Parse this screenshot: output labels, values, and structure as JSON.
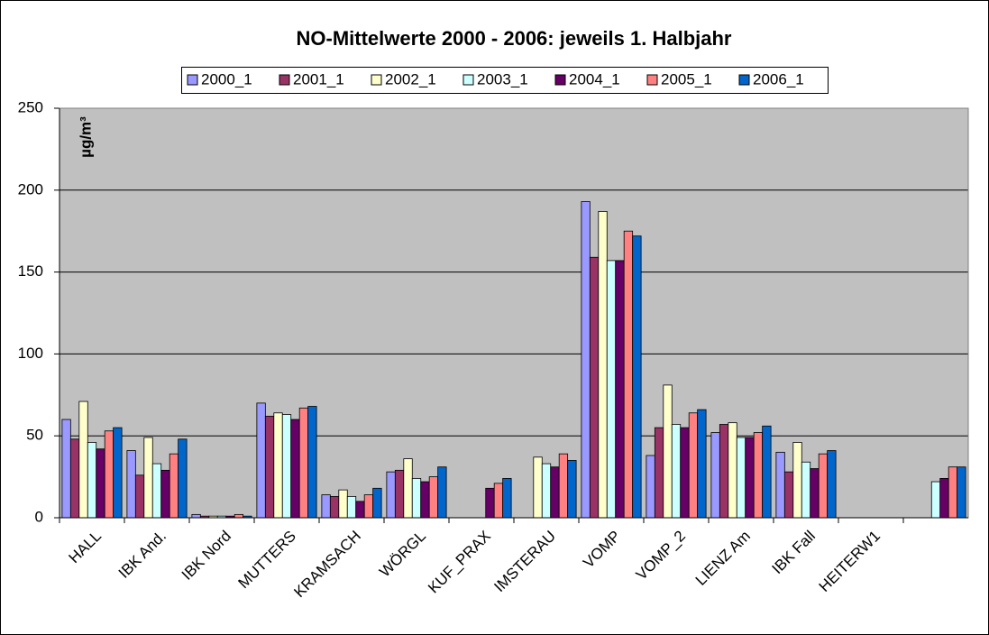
{
  "chart_data": {
    "type": "bar",
    "title": "NO-Mittelwerte 2000 - 2006: jeweils 1. Halbjahr",
    "y_label": "µg/m³",
    "categories": [
      "HALL",
      "IBK And.",
      "IBK Nord",
      "MUTTERS",
      "KRAMSACH",
      "WÖRGL",
      "KUF_PRAX",
      "IMSTERAU",
      "VOMP",
      "VOMP_2",
      "LIENZ Am",
      "IBK Fall",
      "HEITERW1",
      null
    ],
    "series": [
      {
        "name": "2000_1",
        "color": "#9999FF",
        "values": [
          60,
          41,
          2,
          70,
          14,
          28,
          null,
          null,
          193,
          38,
          52,
          40,
          null,
          null
        ]
      },
      {
        "name": "2001_1",
        "color": "#993366",
        "values": [
          48,
          26,
          1,
          62,
          13,
          29,
          null,
          null,
          159,
          55,
          57,
          28,
          null,
          null
        ]
      },
      {
        "name": "2002_1",
        "color": "#FFFFCC",
        "values": [
          71,
          49,
          1,
          64,
          17,
          36,
          null,
          37,
          187,
          81,
          58,
          46,
          null,
          null
        ]
      },
      {
        "name": "2003_1",
        "color": "#CCFFFF",
        "values": [
          46,
          33,
          1,
          63,
          13,
          24,
          null,
          33,
          157,
          57,
          49,
          34,
          null,
          22
        ]
      },
      {
        "name": "2004_1",
        "color": "#660066",
        "values": [
          42,
          29,
          1,
          60,
          10,
          22,
          18,
          31,
          157,
          55,
          49,
          30,
          null,
          24
        ]
      },
      {
        "name": "2005_1",
        "color": "#FF8080",
        "values": [
          53,
          39,
          2,
          67,
          14,
          25,
          21,
          39,
          175,
          64,
          52,
          39,
          null,
          31
        ]
      },
      {
        "name": "2006_1",
        "color": "#0066CC",
        "values": [
          55,
          48,
          1,
          68,
          18,
          31,
          24,
          35,
          172,
          66,
          56,
          41,
          null,
          31
        ]
      }
    ],
    "ylim": [
      0,
      250
    ],
    "yticks": [
      0,
      50,
      100,
      150,
      200,
      250
    ],
    "grid": true,
    "plot_background": "#C0C0C0"
  }
}
